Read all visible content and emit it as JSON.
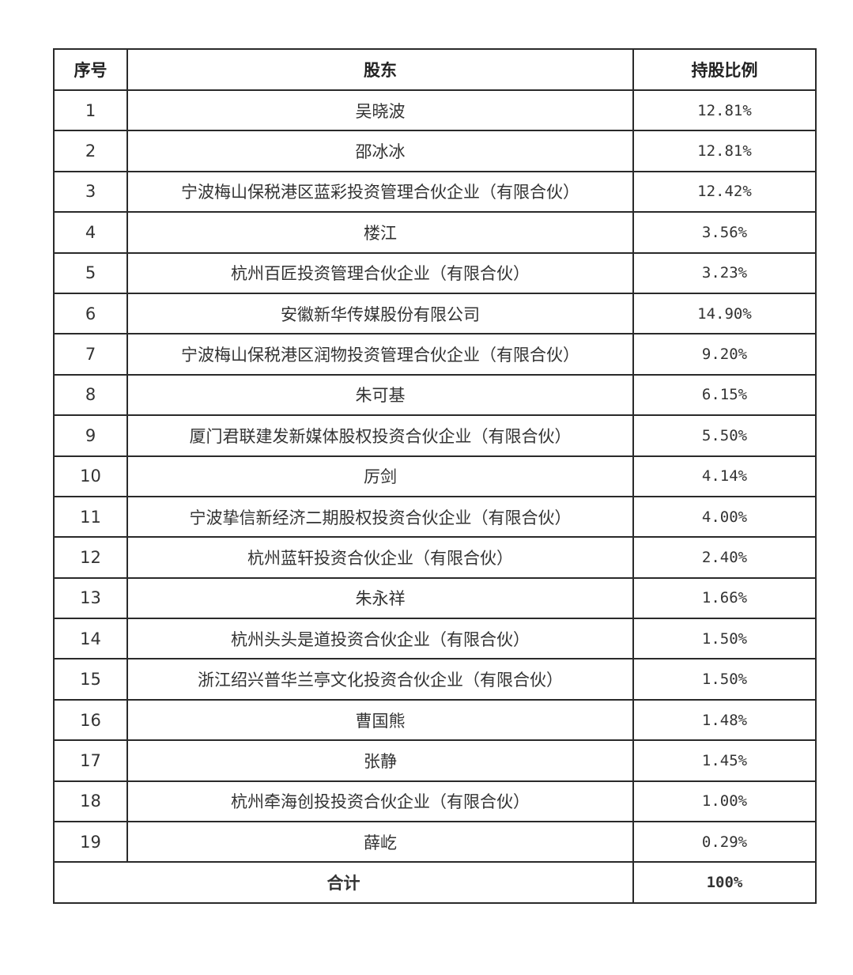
{
  "table": {
    "headers": [
      "序号",
      "股东",
      "持股比例"
    ],
    "rows": [
      {
        "no": "1",
        "holder": "吴晓波",
        "ratio": "12.81%"
      },
      {
        "no": "2",
        "holder": "邵冰冰",
        "ratio": "12.81%"
      },
      {
        "no": "3",
        "holder": "宁波梅山保税港区蓝彩投资管理合伙企业（有限合伙）",
        "ratio": "12.42%"
      },
      {
        "no": "4",
        "holder": "楼江",
        "ratio": "3.56%"
      },
      {
        "no": "5",
        "holder": "杭州百匠投资管理合伙企业（有限合伙）",
        "ratio": "3.23%"
      },
      {
        "no": "6",
        "holder": "安徽新华传媒股份有限公司",
        "ratio": "14.90%"
      },
      {
        "no": "7",
        "holder": "宁波梅山保税港区润物投资管理合伙企业（有限合伙）",
        "ratio": "9.20%"
      },
      {
        "no": "8",
        "holder": "朱可基",
        "ratio": "6.15%"
      },
      {
        "no": "9",
        "holder": "厦门君联建发新媒体股权投资合伙企业（有限合伙）",
        "ratio": "5.50%"
      },
      {
        "no": "10",
        "holder": "厉剑",
        "ratio": "4.14%"
      },
      {
        "no": "11",
        "holder": "宁波挚信新经济二期股权投资合伙企业（有限合伙）",
        "ratio": "4.00%"
      },
      {
        "no": "12",
        "holder": "杭州蓝轩投资合伙企业（有限合伙）",
        "ratio": "2.40%"
      },
      {
        "no": "13",
        "holder": "朱永祥",
        "ratio": "1.66%"
      },
      {
        "no": "14",
        "holder": "杭州头头是道投资合伙企业（有限合伙）",
        "ratio": "1.50%"
      },
      {
        "no": "15",
        "holder": "浙江绍兴普华兰亭文化投资合伙企业（有限合伙）",
        "ratio": "1.50%"
      },
      {
        "no": "16",
        "holder": "曹国熊",
        "ratio": "1.48%"
      },
      {
        "no": "17",
        "holder": "张静",
        "ratio": "1.45%"
      },
      {
        "no": "18",
        "holder": "杭州牵海创投投资合伙企业（有限合伙）",
        "ratio": "1.00%"
      },
      {
        "no": "19",
        "holder": "薛屹",
        "ratio": "0.29%"
      }
    ],
    "total": {
      "label": "合计",
      "ratio": "100%"
    }
  }
}
